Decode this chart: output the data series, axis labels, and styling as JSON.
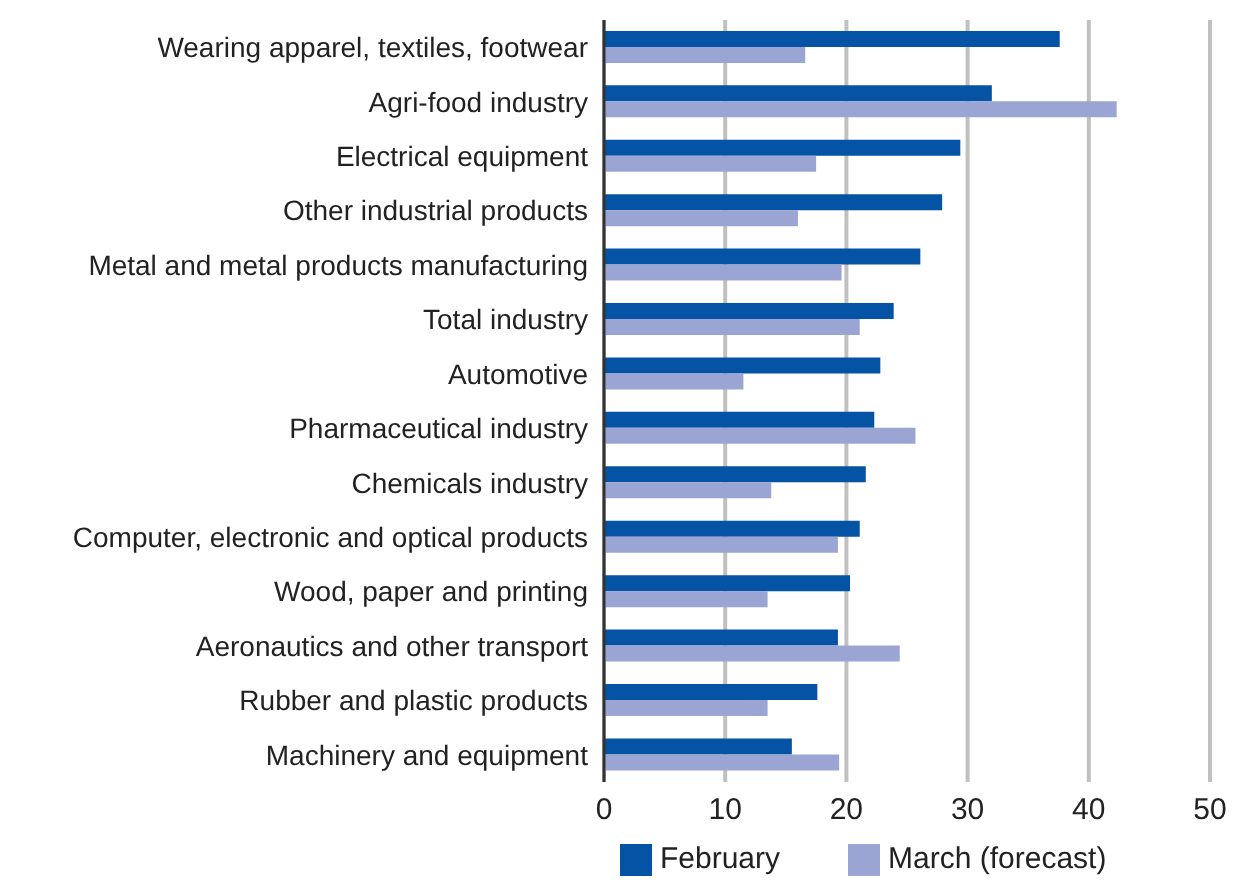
{
  "chart_data": {
    "type": "bar",
    "orientation": "horizontal",
    "categories": [
      "Wearing apparel, textiles, footwear",
      "Agri-food industry",
      "Electrical equipment",
      "Other industrial products",
      "Metal and metal products manufacturing",
      "Total industry",
      "Automotive",
      "Pharmaceutical industry",
      "Chemicals industry",
      "Computer, electronic and optical products",
      "Wood, paper and printing",
      "Aeronautics and other transport",
      "Rubber and plastic products",
      "Machinery and equipment"
    ],
    "series": [
      {
        "name": "February",
        "color": "#0453a5",
        "values": [
          37.6,
          32.0,
          29.4,
          27.9,
          26.1,
          23.9,
          22.8,
          22.3,
          21.6,
          21.1,
          20.3,
          19.3,
          17.6,
          15.5
        ]
      },
      {
        "name": "March (forecast)",
        "color": "#9aa5d3",
        "values": [
          16.6,
          42.3,
          17.5,
          16.0,
          19.6,
          21.1,
          11.5,
          25.7,
          13.8,
          19.3,
          13.5,
          24.4,
          13.5,
          19.4
        ]
      }
    ],
    "xlim": [
      0,
      50
    ],
    "xticks": [
      0,
      10,
      20,
      30,
      40,
      50
    ],
    "grid": "x",
    "legend": "bottom"
  }
}
